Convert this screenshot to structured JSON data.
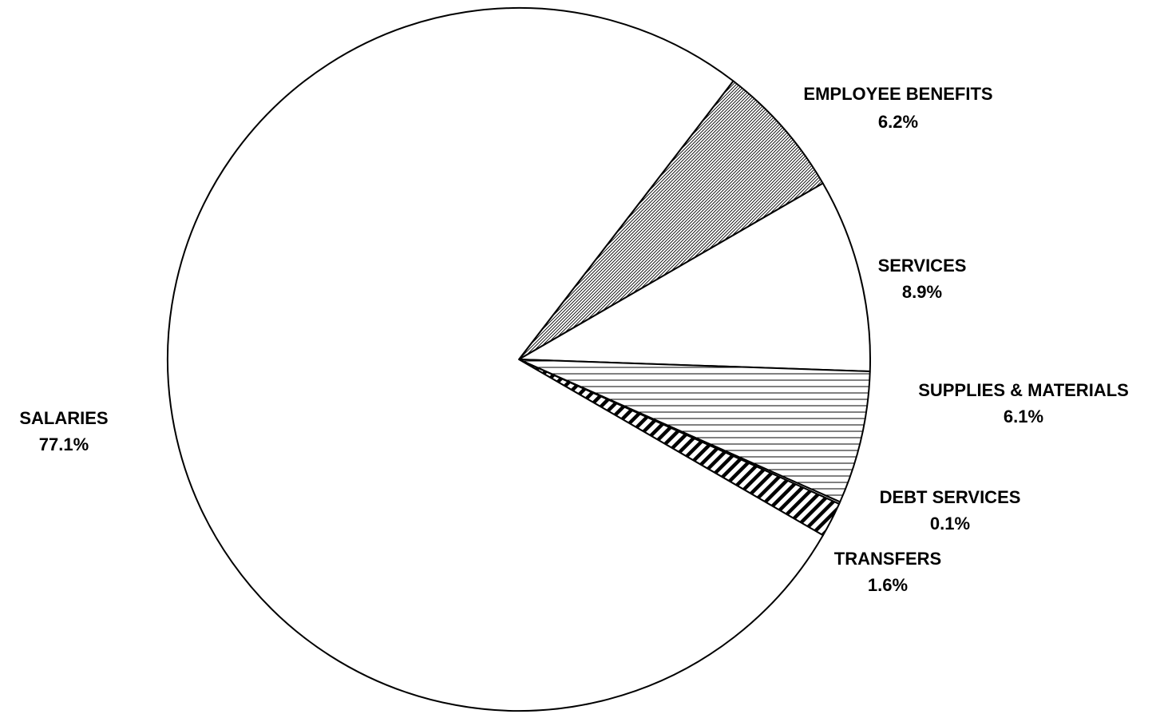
{
  "chart_data": {
    "type": "pie",
    "title": "",
    "start_angle_deg": -52.4,
    "direction": "clockwise",
    "slices": [
      {
        "label": "EMPLOYEE BENEFITS",
        "value": 6.2,
        "value_label": "6.2%",
        "pattern": "dense-diagonal"
      },
      {
        "label": "SERVICES",
        "value": 8.9,
        "value_label": "8.9%",
        "pattern": "none"
      },
      {
        "label": "SUPPLIES & MATERIALS",
        "value": 6.1,
        "value_label": "6.1%",
        "pattern": "horizontal"
      },
      {
        "label": "DEBT SERVICES",
        "value": 0.1,
        "value_label": "0.1%",
        "pattern": "none"
      },
      {
        "label": "TRANSFERS",
        "value": 1.6,
        "value_label": "1.6%",
        "pattern": "bold-diagonal"
      },
      {
        "label": "SALARIES",
        "value": 77.1,
        "value_label": "77.1%",
        "pattern": "none"
      }
    ],
    "colors": {
      "stroke": "#000000",
      "fill": "#ffffff"
    }
  }
}
